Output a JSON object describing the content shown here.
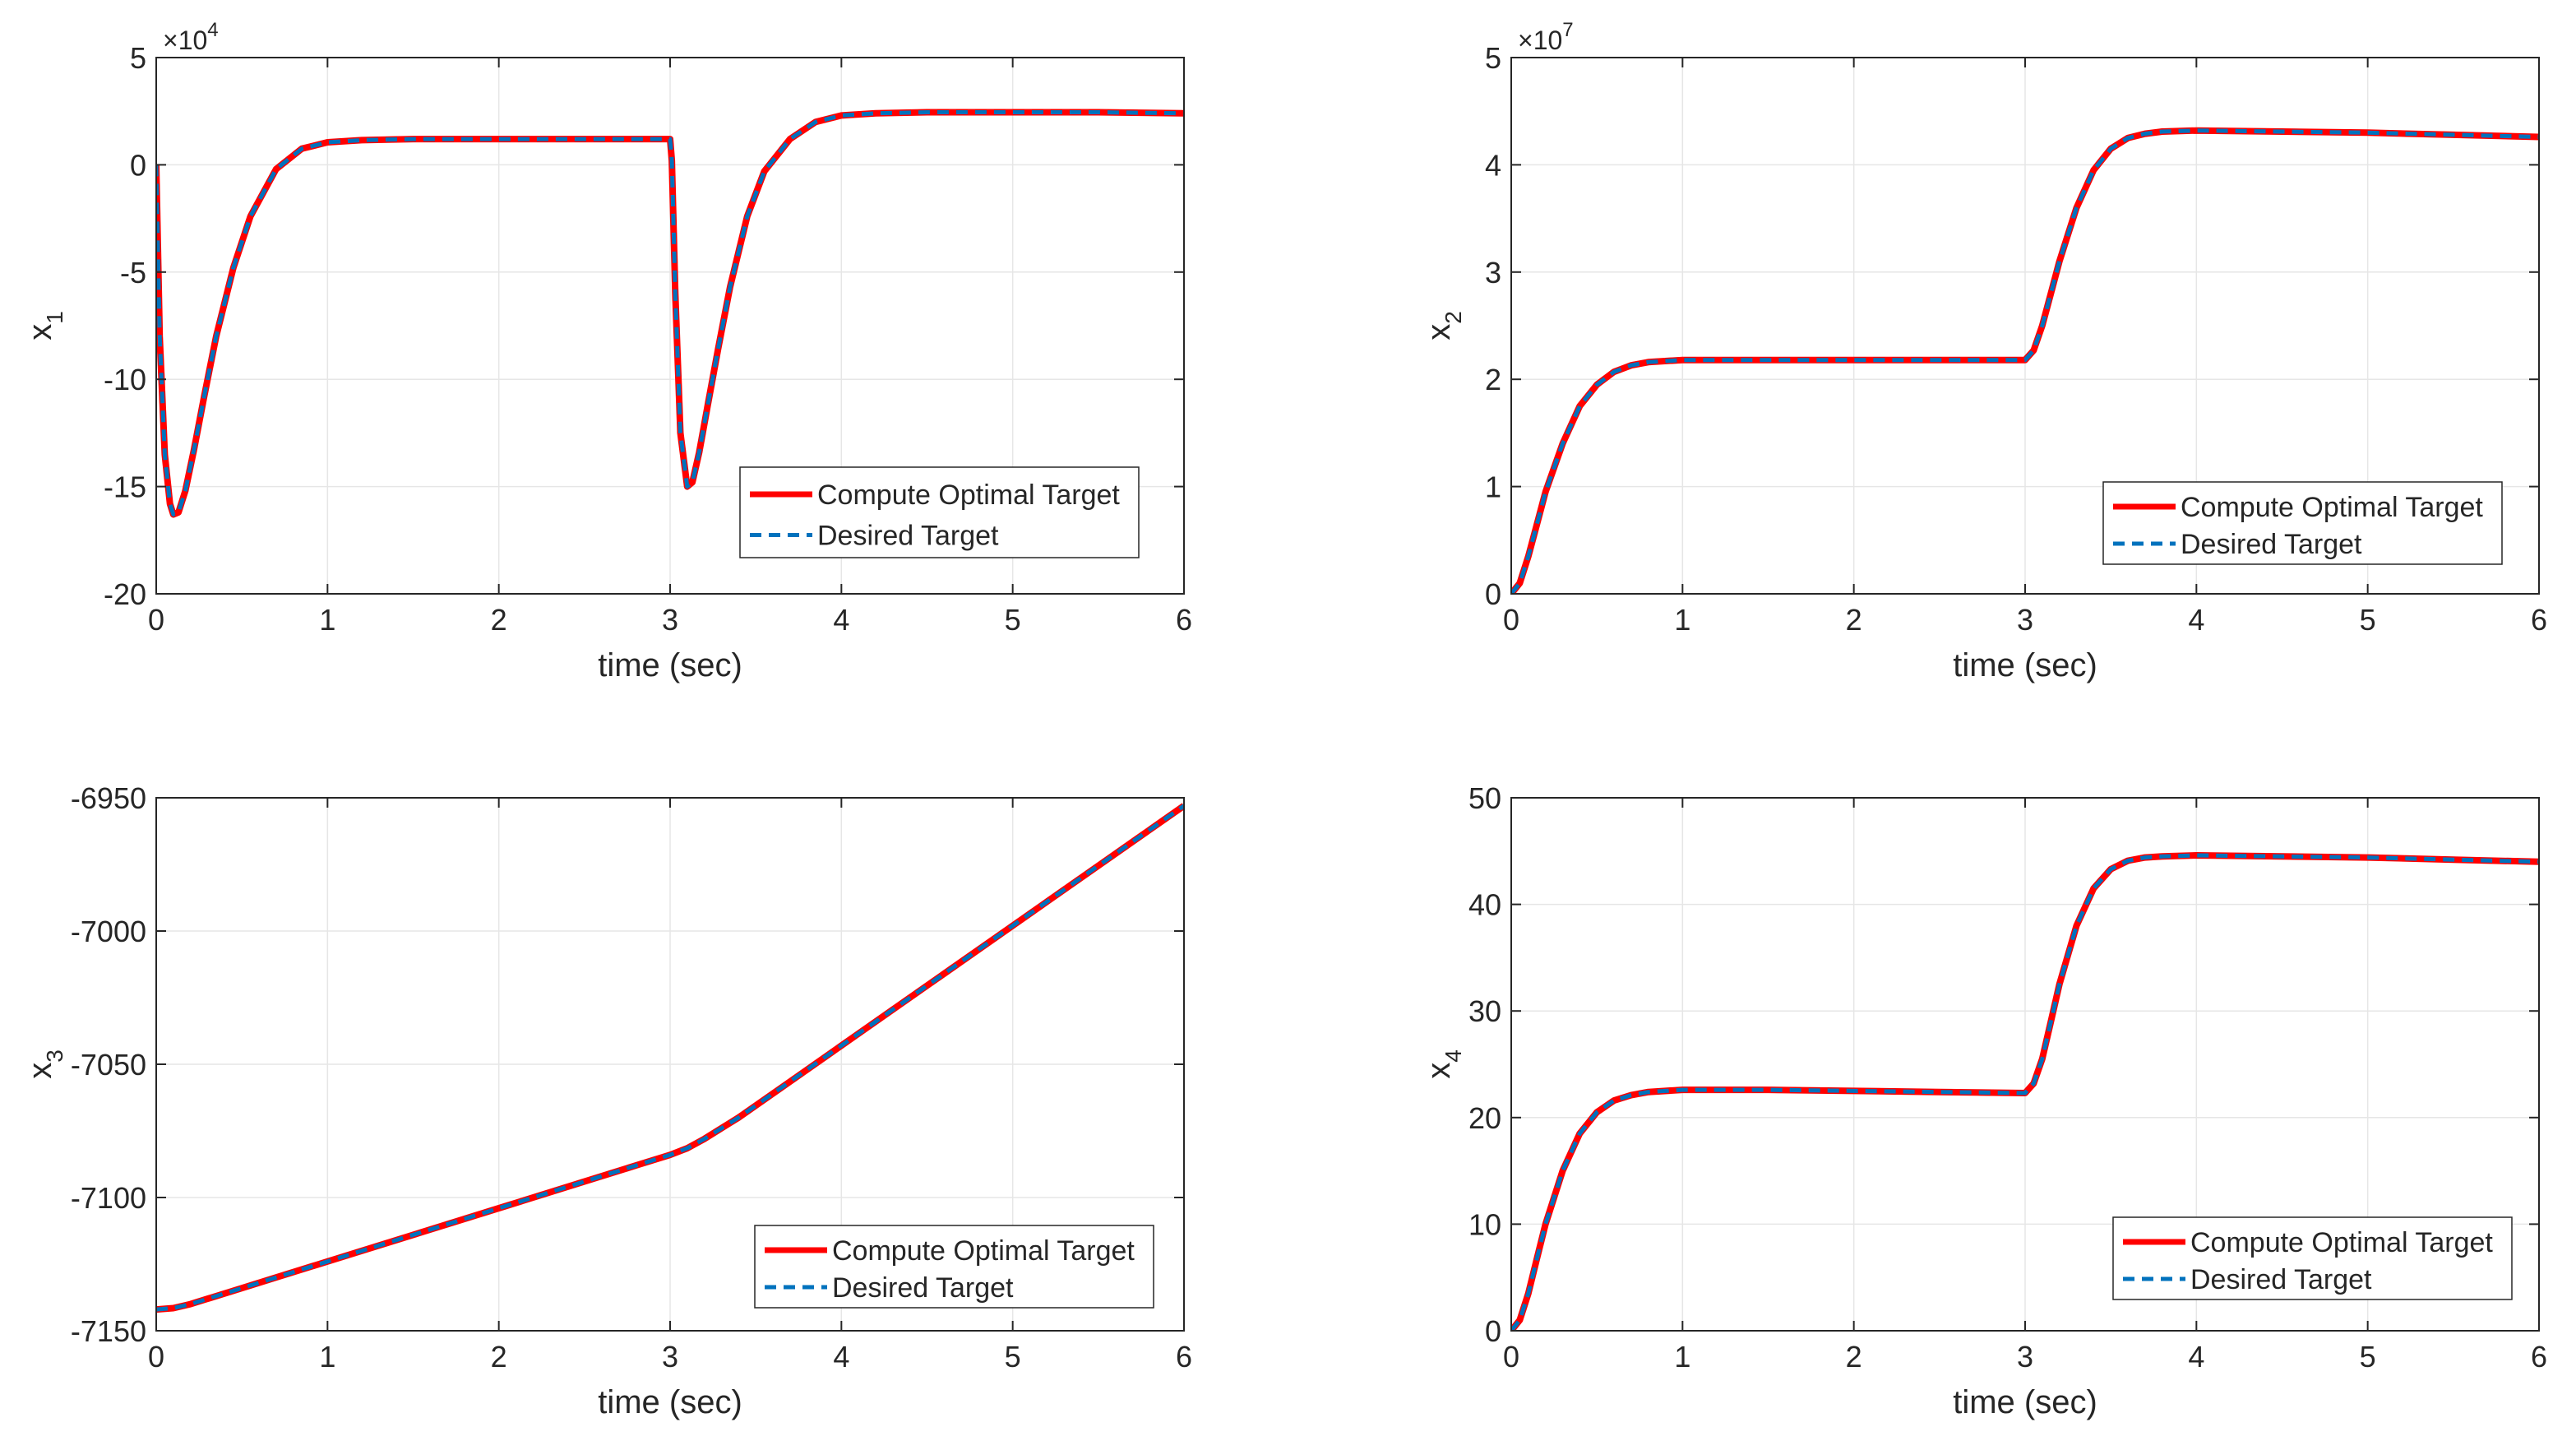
{
  "figure": {
    "colors": {
      "computed": "#ff0000",
      "desired": "#0072bd",
      "axes": "#262626",
      "grid": "#e6e6e6"
    },
    "legend_labels": [
      "Compute Optimal Target",
      "Desired Target"
    ]
  },
  "chart_data": [
    {
      "id": "x1",
      "type": "line",
      "title": "",
      "xlabel": "time (sec)",
      "ylabel_base": "x",
      "ylabel_sub": "1",
      "exponent_base": "×10",
      "exponent_power": "4",
      "xlim": [
        0,
        6
      ],
      "ylim": [
        -20,
        5
      ],
      "xticks": [
        0,
        1,
        2,
        3,
        4,
        5,
        6
      ],
      "yticks": [
        -20,
        -15,
        -10,
        -5,
        0,
        5
      ],
      "xtick_labels": [
        "0",
        "1",
        "2",
        "3",
        "4",
        "5",
        "6"
      ],
      "ytick_labels": [
        "-20",
        "-15",
        "-10",
        "-5",
        "0",
        "5"
      ],
      "grid": true,
      "legend_position": "lower-right",
      "series": [
        {
          "name": "Compute Optimal Target",
          "style": "solid",
          "x": [
            0,
            0.02,
            0.05,
            0.08,
            0.1,
            0.13,
            0.17,
            0.22,
            0.28,
            0.35,
            0.45,
            0.55,
            0.7,
            0.85,
            1.0,
            1.2,
            1.5,
            2.0,
            2.5,
            3.0,
            3.01,
            3.03,
            3.06,
            3.1,
            3.13,
            3.17,
            3.22,
            3.28,
            3.35,
            3.45,
            3.55,
            3.7,
            3.85,
            4.0,
            4.2,
            4.5,
            5.0,
            5.5,
            6.0
          ],
          "y": [
            0,
            -8,
            -13.5,
            -15.8,
            -16.3,
            -16.2,
            -15.2,
            -13.3,
            -10.8,
            -8.0,
            -4.8,
            -2.4,
            -0.2,
            0.75,
            1.05,
            1.15,
            1.2,
            1.2,
            1.2,
            1.2,
            0.2,
            -6,
            -12.5,
            -15.0,
            -14.8,
            -13.4,
            -11.2,
            -8.6,
            -5.7,
            -2.4,
            -0.3,
            1.2,
            2.0,
            2.3,
            2.4,
            2.45,
            2.45,
            2.45,
            2.4
          ]
        },
        {
          "name": "Desired Target",
          "style": "dashed",
          "x": [
            0,
            0.02,
            0.05,
            0.08,
            0.1,
            0.13,
            0.17,
            0.22,
            0.28,
            0.35,
            0.45,
            0.55,
            0.7,
            0.85,
            1.0,
            1.2,
            1.5,
            2.0,
            2.5,
            3.0,
            3.01,
            3.03,
            3.06,
            3.1,
            3.13,
            3.17,
            3.22,
            3.28,
            3.35,
            3.45,
            3.55,
            3.7,
            3.85,
            4.0,
            4.2,
            4.5,
            5.0,
            5.5,
            6.0
          ],
          "y": [
            0,
            -8,
            -13.5,
            -15.8,
            -16.3,
            -16.2,
            -15.2,
            -13.3,
            -10.8,
            -8.0,
            -4.8,
            -2.4,
            -0.2,
            0.75,
            1.05,
            1.15,
            1.2,
            1.2,
            1.2,
            1.2,
            0.2,
            -6,
            -12.5,
            -15.0,
            -14.8,
            -13.4,
            -11.2,
            -8.6,
            -5.7,
            -2.4,
            -0.3,
            1.2,
            2.0,
            2.3,
            2.4,
            2.45,
            2.45,
            2.45,
            2.4
          ]
        }
      ]
    },
    {
      "id": "x2",
      "type": "line",
      "title": "",
      "xlabel": "time (sec)",
      "ylabel_base": "x",
      "ylabel_sub": "2",
      "exponent_base": "×10",
      "exponent_power": "7",
      "xlim": [
        0,
        6
      ],
      "ylim": [
        0,
        5
      ],
      "xticks": [
        0,
        1,
        2,
        3,
        4,
        5,
        6
      ],
      "yticks": [
        0,
        1,
        2,
        3,
        4,
        5
      ],
      "xtick_labels": [
        "0",
        "1",
        "2",
        "3",
        "4",
        "5",
        "6"
      ],
      "ytick_labels": [
        "0",
        "1",
        "2",
        "3",
        "4",
        "5"
      ],
      "grid": true,
      "legend_position": "lower-right",
      "series": [
        {
          "name": "Compute Optimal Target",
          "style": "solid",
          "x": [
            0,
            0.05,
            0.1,
            0.15,
            0.2,
            0.3,
            0.4,
            0.5,
            0.6,
            0.7,
            0.8,
            1.0,
            1.5,
            2.0,
            2.5,
            3.0,
            3.05,
            3.1,
            3.15,
            3.2,
            3.3,
            3.4,
            3.5,
            3.6,
            3.7,
            3.8,
            4.0,
            4.5,
            5.0,
            5.5,
            6.0
          ],
          "y": [
            0,
            0.1,
            0.35,
            0.65,
            0.95,
            1.4,
            1.75,
            1.95,
            2.07,
            2.13,
            2.16,
            2.18,
            2.18,
            2.18,
            2.18,
            2.18,
            2.27,
            2.5,
            2.8,
            3.1,
            3.6,
            3.95,
            4.15,
            4.25,
            4.29,
            4.31,
            4.32,
            4.31,
            4.3,
            4.28,
            4.26
          ]
        },
        {
          "name": "Desired Target",
          "style": "dashed",
          "x": [
            0,
            0.05,
            0.1,
            0.15,
            0.2,
            0.3,
            0.4,
            0.5,
            0.6,
            0.7,
            0.8,
            1.0,
            1.5,
            2.0,
            2.5,
            3.0,
            3.05,
            3.1,
            3.15,
            3.2,
            3.3,
            3.4,
            3.5,
            3.6,
            3.7,
            3.8,
            4.0,
            4.5,
            5.0,
            5.5,
            6.0
          ],
          "y": [
            0,
            0.1,
            0.35,
            0.65,
            0.95,
            1.4,
            1.75,
            1.95,
            2.07,
            2.13,
            2.16,
            2.18,
            2.18,
            2.18,
            2.18,
            2.18,
            2.27,
            2.5,
            2.8,
            3.1,
            3.6,
            3.95,
            4.15,
            4.25,
            4.29,
            4.31,
            4.32,
            4.31,
            4.3,
            4.28,
            4.26
          ]
        }
      ]
    },
    {
      "id": "x3",
      "type": "line",
      "title": "",
      "xlabel": "time (sec)",
      "ylabel_base": "x",
      "ylabel_sub": "3",
      "exponent_base": "",
      "exponent_power": "",
      "xlim": [
        0,
        6
      ],
      "ylim": [
        -7150,
        -6950
      ],
      "xticks": [
        0,
        1,
        2,
        3,
        4,
        5,
        6
      ],
      "yticks": [
        -7150,
        -7100,
        -7050,
        -7000,
        -6950
      ],
      "xtick_labels": [
        "0",
        "1",
        "2",
        "3",
        "4",
        "5",
        "6"
      ],
      "ytick_labels": [
        "-7150",
        "-7100",
        "-7050",
        "-7000",
        "-6950"
      ],
      "grid": true,
      "legend_position": "lower-right",
      "series": [
        {
          "name": "Compute Optimal Target",
          "style": "solid",
          "x": [
            0,
            0.1,
            0.2,
            0.3,
            0.5,
            0.7,
            1.0,
            1.5,
            2.0,
            2.5,
            2.8,
            3.0,
            3.1,
            3.2,
            3.4,
            3.7,
            4.0,
            4.5,
            5.0,
            5.5,
            6.0
          ],
          "y": [
            -7142,
            -7141.5,
            -7140,
            -7138,
            -7134,
            -7130,
            -7124,
            -7114,
            -7104,
            -7094,
            -7088,
            -7084,
            -7081.5,
            -7078,
            -7070,
            -7056.5,
            -7043,
            -7020.5,
            -6998,
            -6975.5,
            -6953
          ]
        },
        {
          "name": "Desired Target",
          "style": "dashed",
          "x": [
            0,
            0.1,
            0.2,
            0.3,
            0.5,
            0.7,
            1.0,
            1.5,
            2.0,
            2.5,
            2.8,
            3.0,
            3.1,
            3.2,
            3.4,
            3.7,
            4.0,
            4.5,
            5.0,
            5.5,
            6.0
          ],
          "y": [
            -7142,
            -7141.5,
            -7140,
            -7138,
            -7134,
            -7130,
            -7124,
            -7114,
            -7104,
            -7094,
            -7088,
            -7084,
            -7081.5,
            -7078,
            -7070,
            -7056.5,
            -7043,
            -7020.5,
            -6998,
            -6975.5,
            -6953
          ]
        }
      ]
    },
    {
      "id": "x4",
      "type": "line",
      "title": "",
      "xlabel": "time (sec)",
      "ylabel_base": "x",
      "ylabel_sub": "4",
      "exponent_base": "",
      "exponent_power": "",
      "xlim": [
        0,
        6
      ],
      "ylim": [
        0,
        50
      ],
      "xticks": [
        0,
        1,
        2,
        3,
        4,
        5,
        6
      ],
      "yticks": [
        0,
        10,
        20,
        30,
        40,
        50
      ],
      "xtick_labels": [
        "0",
        "1",
        "2",
        "3",
        "4",
        "5",
        "6"
      ],
      "ytick_labels": [
        "0",
        "10",
        "20",
        "30",
        "40",
        "50"
      ],
      "grid": true,
      "legend_position": "lower-right",
      "series": [
        {
          "name": "Compute Optimal Target",
          "style": "solid",
          "x": [
            0,
            0.05,
            0.1,
            0.15,
            0.2,
            0.3,
            0.4,
            0.5,
            0.6,
            0.7,
            0.8,
            1.0,
            1.5,
            2.0,
            2.5,
            3.0,
            3.05,
            3.1,
            3.15,
            3.2,
            3.3,
            3.4,
            3.5,
            3.6,
            3.7,
            3.8,
            4.0,
            4.5,
            5.0,
            5.5,
            6.0
          ],
          "y": [
            0,
            1,
            3.5,
            6.8,
            10,
            15,
            18.5,
            20.5,
            21.6,
            22.1,
            22.4,
            22.6,
            22.6,
            22.5,
            22.4,
            22.3,
            23.2,
            25.5,
            29,
            32.5,
            38,
            41.5,
            43.3,
            44.1,
            44.4,
            44.5,
            44.6,
            44.5,
            44.4,
            44.2,
            44.0
          ]
        },
        {
          "name": "Desired Target",
          "style": "dashed",
          "x": [
            0,
            0.05,
            0.1,
            0.15,
            0.2,
            0.3,
            0.4,
            0.5,
            0.6,
            0.7,
            0.8,
            1.0,
            1.5,
            2.0,
            2.5,
            3.0,
            3.05,
            3.1,
            3.15,
            3.2,
            3.3,
            3.4,
            3.5,
            3.6,
            3.7,
            3.8,
            4.0,
            4.5,
            5.0,
            5.5,
            6.0
          ],
          "y": [
            0,
            1,
            3.5,
            6.8,
            10,
            15,
            18.5,
            20.5,
            21.6,
            22.1,
            22.4,
            22.6,
            22.6,
            22.5,
            22.4,
            22.3,
            23.2,
            25.5,
            29,
            32.5,
            38,
            41.5,
            43.3,
            44.1,
            44.4,
            44.5,
            44.6,
            44.5,
            44.4,
            44.2,
            44.0
          ]
        }
      ]
    }
  ]
}
